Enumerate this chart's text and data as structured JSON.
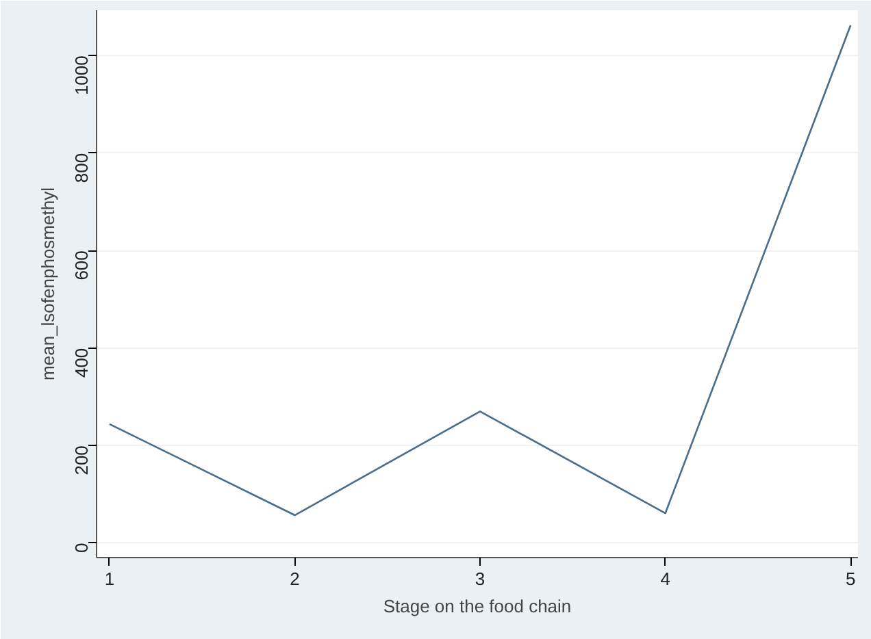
{
  "chart_data": {
    "type": "line",
    "xlabel": "Stage on the food chain",
    "ylabel": "mean_lsofenphosmethyl",
    "x": [
      1,
      2,
      3,
      4,
      5
    ],
    "series": [
      {
        "color": "#4a6d8c",
        "values": [
          244,
          57,
          270,
          61,
          1062
        ]
      }
    ],
    "xlim": [
      0.93,
      5.04
    ],
    "xticks": [
      1,
      2,
      3,
      4,
      5
    ],
    "ylim": [
      -30,
      1093
    ],
    "yticks": [
      0,
      200,
      400,
      600,
      800,
      1000
    ],
    "grid": "y",
    "marker": "none",
    "line_style": "solid"
  }
}
